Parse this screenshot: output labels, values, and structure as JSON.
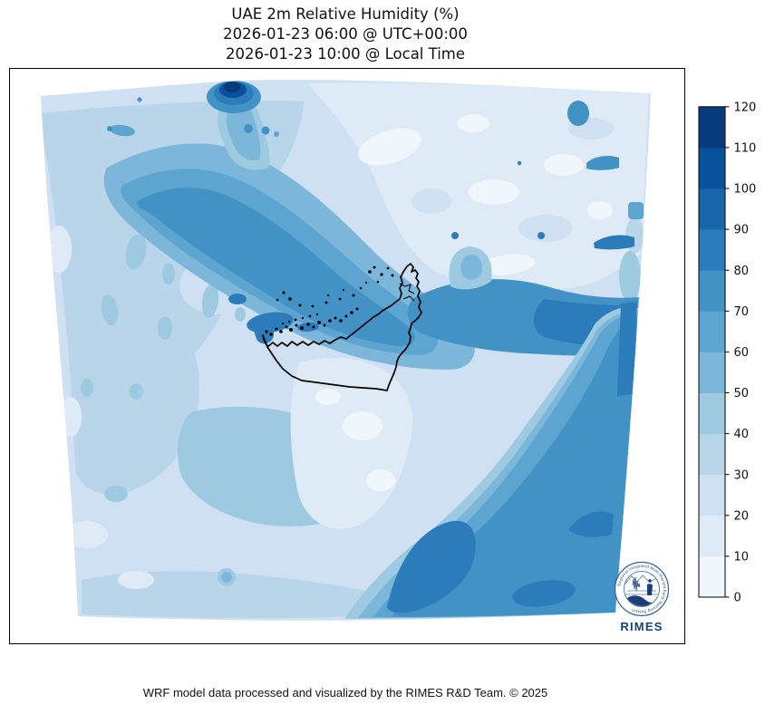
{
  "title": {
    "line1": "UAE 2m Relative Humidity (%)",
    "line2": "2026-01-23 06:00 @ UTC+00:00",
    "line3": "2026-01-23 10:00 @ Local Time"
  },
  "footer": {
    "credit": "WRF model data processed and visualized by the RIMES R&D Team. © 2025"
  },
  "logo": {
    "name": "RIMES",
    "ring_text": "Regional Integrated Multi-Hazard Early Warning System",
    "color": "#1b3f77"
  },
  "chart_data": {
    "type": "heatmap",
    "title": "UAE 2m Relative Humidity (%)",
    "valid_time_utc": "2026-01-23 06:00 @ UTC+00:00",
    "valid_time_local": "2026-01-23 10:00 @ Local Time",
    "variable": "2m Relative Humidity",
    "units": "%",
    "model": "WRF",
    "colorbar": {
      "min": 0,
      "max": 120,
      "tick_step": 10,
      "ticks": [
        0,
        10,
        20,
        30,
        40,
        50,
        60,
        70,
        80,
        90,
        100,
        110,
        120
      ],
      "segment_colors": [
        "#eff6fc",
        "#deebf7",
        "#cee0f2",
        "#b9d5ea",
        "#9ecae1",
        "#7cb7da",
        "#5da5d1",
        "#4292c6",
        "#2c7cbb",
        "#1966ad",
        "#08519c",
        "#083b7c"
      ],
      "colormap": "Blues",
      "orientation": "vertical",
      "position": "right"
    },
    "regions_approx_rh_percent": {
      "persian_gulf_band": "60-90",
      "north_gulf_top_edge_cell": "100-120",
      "iran_interior_northeast": "0-30",
      "strait_of_hormuz_band": "70-90",
      "gulf_of_oman_sea_southeast": "70-90",
      "uae_interior": "20-40",
      "saudi_arabia_west": "30-50",
      "oman_mountains": "0-20",
      "south_central_desert": "40-50"
    },
    "overlays": [
      "UAE country border (black)",
      "coastal islands (black dots)"
    ]
  }
}
